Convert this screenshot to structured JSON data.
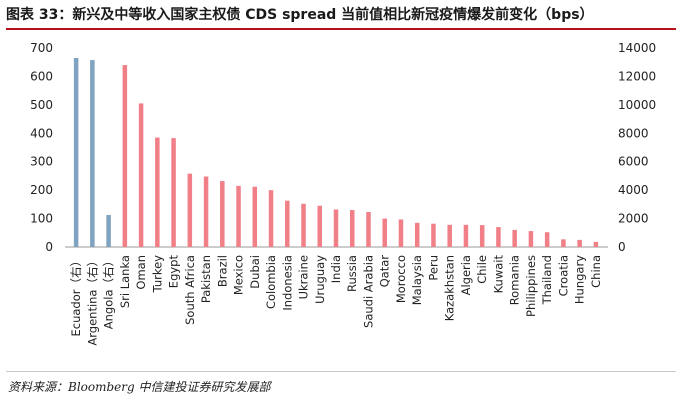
{
  "title": "图表 33：新兴及中等收入国家主权债 CDS spread 当前值相比新冠疫情爆发前变化（bps）",
  "source": "资料来源：Bloomberg    中信建投证券研究发展部",
  "colors": {
    "right_axis_series": "#7fa3c0",
    "left_axis_series": "#f07f87",
    "axis": "#999999",
    "title_rule": "#b5121b"
  },
  "chart_data": {
    "type": "bar",
    "categories": [
      "Ecuador（右）",
      "Argentina（右）",
      "Angola（右）",
      "Sri Lanka",
      "Oman",
      "Turkey",
      "Egypt",
      "South Africa",
      "Pakistan",
      "Brazil",
      "Mexico",
      "Dubai",
      "Colombia",
      "Indonesia",
      "Ukraine",
      "Uruguay",
      "India",
      "Russia",
      "Saudi Arabia",
      "Qatar",
      "Morocco",
      "Malaysia",
      "Peru",
      "Kazakhstan",
      "Algeria",
      "Chile",
      "Kuwait",
      "Romania",
      "Philippines",
      "Thailand",
      "Croatia",
      "Hungary",
      "China"
    ],
    "series": [
      {
        "axis": "right",
        "color": "#7fa3c0",
        "values": [
          13300,
          13150,
          2250,
          null,
          null,
          null,
          null,
          null,
          null,
          null,
          null,
          null,
          null,
          null,
          null,
          null,
          null,
          null,
          null,
          null,
          null,
          null,
          null,
          null,
          null,
          null,
          null,
          null,
          null,
          null,
          null,
          null,
          null
        ]
      },
      {
        "axis": "left",
        "color": "#f07f87",
        "values": [
          null,
          null,
          null,
          640,
          505,
          385,
          383,
          258,
          248,
          232,
          215,
          212,
          200,
          163,
          152,
          145,
          132,
          130,
          123,
          100,
          97,
          85,
          82,
          78,
          78,
          77,
          70,
          60,
          56,
          52,
          27,
          25,
          18
        ]
      }
    ],
    "left_axis": {
      "min": 0,
      "max": 700,
      "ticks": [
        0,
        100,
        200,
        300,
        400,
        500,
        600,
        700
      ]
    },
    "right_axis": {
      "min": 0,
      "max": 14000,
      "ticks": [
        0,
        2000,
        4000,
        6000,
        8000,
        10000,
        12000,
        14000
      ]
    },
    "grid": false,
    "legend": "none"
  }
}
